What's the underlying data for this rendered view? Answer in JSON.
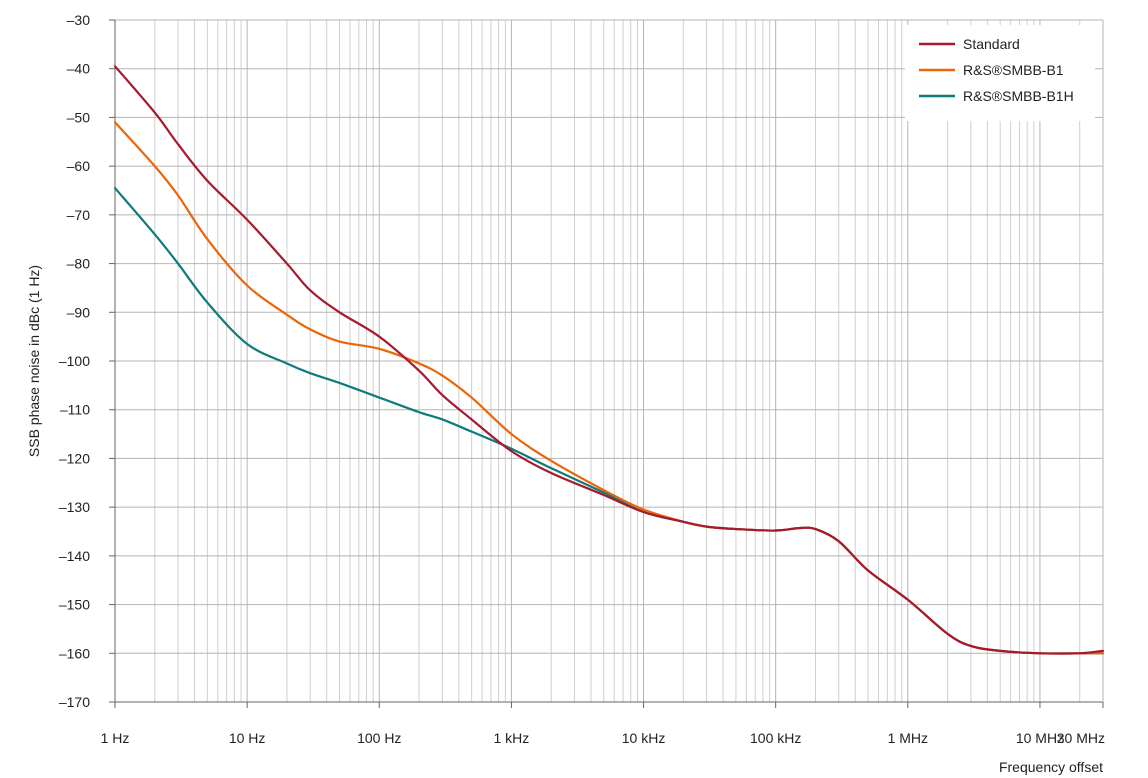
{
  "chart_data": {
    "type": "line",
    "title": "",
    "xlabel": "Frequency offset",
    "ylabel": "SSB phase noise in dBc (1 Hz)",
    "xscale": "log",
    "xlim": [
      1,
      30000000
    ],
    "ylim": [
      -170,
      -30
    ],
    "grid": true,
    "legend": "top-right",
    "x_ticks": [
      {
        "value": 1,
        "label": "1 Hz"
      },
      {
        "value": 10,
        "label": "10 Hz"
      },
      {
        "value": 100,
        "label": "100 Hz"
      },
      {
        "value": 1000,
        "label": "1 kHz"
      },
      {
        "value": 10000,
        "label": "10 kHz"
      },
      {
        "value": 100000,
        "label": "100 kHz"
      },
      {
        "value": 1000000,
        "label": "1 MHz"
      },
      {
        "value": 10000000,
        "label": "10 MHz"
      },
      {
        "value": 30000000,
        "label": "30 MHz"
      }
    ],
    "y_ticks": [
      {
        "value": -30,
        "label": "–30"
      },
      {
        "value": -40,
        "label": "–40"
      },
      {
        "value": -50,
        "label": "–50"
      },
      {
        "value": -60,
        "label": "–60"
      },
      {
        "value": -70,
        "label": "–70"
      },
      {
        "value": -80,
        "label": "–80"
      },
      {
        "value": -90,
        "label": "–90"
      },
      {
        "value": -100,
        "label": "–100"
      },
      {
        "value": -110,
        "label": "–110"
      },
      {
        "value": -120,
        "label": "–120"
      },
      {
        "value": -130,
        "label": "–130"
      },
      {
        "value": -140,
        "label": "–140"
      },
      {
        "value": -150,
        "label": "–150"
      },
      {
        "value": -160,
        "label": "–160"
      },
      {
        "value": -170,
        "label": "–170"
      }
    ],
    "series": [
      {
        "name": "Standard",
        "color": "#a6192e",
        "x": [
          1,
          2,
          3,
          5,
          10,
          20,
          30,
          50,
          100,
          200,
          300,
          500,
          1000,
          2000,
          5000,
          10000,
          20000,
          30000,
          50000,
          100000,
          150000,
          200000,
          300000,
          500000,
          1000000,
          2000000,
          3000000,
          5000000,
          10000000,
          20000000,
          30000000
        ],
        "y": [
          -39.5,
          -49,
          -55.5,
          -63,
          -71,
          -80,
          -85.5,
          -90,
          -95,
          -102,
          -107,
          -112,
          -118.5,
          -123,
          -127.5,
          -131,
          -133,
          -134,
          -134.5,
          -134.8,
          -134.3,
          -134.5,
          -137,
          -143,
          -149,
          -156,
          -158.5,
          -159.5,
          -160,
          -160,
          -159.5
        ]
      },
      {
        "name": "R&S®SMBB-B1",
        "color": "#ec6608",
        "x": [
          1,
          2,
          3,
          5,
          10,
          20,
          30,
          50,
          100,
          200,
          300,
          500,
          1000,
          2000,
          5000,
          10000,
          20000,
          30000,
          50000,
          100000,
          150000,
          200000,
          300000,
          500000,
          1000000,
          2000000,
          3000000,
          5000000,
          10000000,
          20000000,
          30000000
        ],
        "y": [
          -51,
          -60,
          -66,
          -75,
          -84.5,
          -90.5,
          -93.5,
          -96,
          -97.5,
          -100.5,
          -103,
          -107.5,
          -115,
          -120.5,
          -126.5,
          -130.5,
          -133,
          -134,
          -134.5,
          -134.8,
          -134.3,
          -134.5,
          -137,
          -143,
          -149,
          -156,
          -158.5,
          -159.5,
          -160,
          -160,
          -160
        ]
      },
      {
        "name": "R&S®SMBB-B1H",
        "color": "#0f7b7b",
        "x": [
          1,
          2,
          3,
          5,
          10,
          20,
          30,
          50,
          100,
          200,
          300,
          500,
          1000,
          2000,
          5000,
          10000,
          20000,
          30000,
          50000,
          100000,
          150000,
          200000,
          300000,
          500000,
          1000000,
          2000000,
          3000000,
          5000000,
          10000000,
          20000000,
          30000000
        ],
        "y": [
          -64.5,
          -74,
          -80,
          -88,
          -96.5,
          -100.5,
          -102.5,
          -104.5,
          -107.5,
          -110.5,
          -112,
          -114.5,
          -118,
          -122,
          -127,
          -131,
          -133,
          -134,
          -134.5,
          -134.8,
          -134.3,
          -134.5,
          -137,
          -143,
          -149,
          -156,
          -158.5,
          -159.5,
          -160,
          -160,
          -160
        ]
      }
    ]
  }
}
